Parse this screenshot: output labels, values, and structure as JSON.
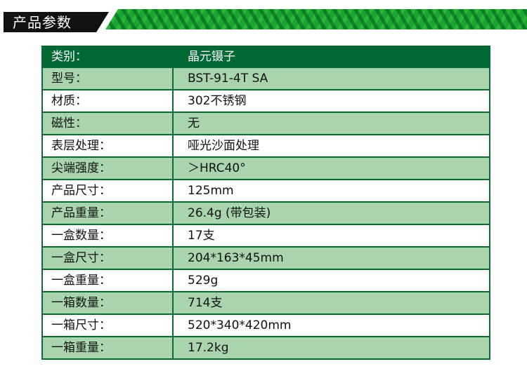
{
  "section_title": "产品参数",
  "colors": {
    "header": "#006934",
    "row_alt": "#a8d5ae",
    "border": "#0e6b35"
  },
  "table": {
    "header": {
      "label": "类别：",
      "value": "晶元镊子"
    },
    "rows": [
      {
        "label": "型号：",
        "value": "BST-91-4T SA"
      },
      {
        "label": "材质：",
        "value": "302不锈钢"
      },
      {
        "label": "磁性：",
        "value": "无"
      },
      {
        "label": "表层处理：",
        "value": "哑光沙面处理"
      },
      {
        "label": "尖端强度：",
        "value": "＞HRC40°"
      },
      {
        "label": "产品尺寸：",
        "value": "125mm"
      },
      {
        "label": "产品重量：",
        "value": "26.4g (带包装)"
      },
      {
        "label": "一盒数量：",
        "value": "17支"
      },
      {
        "label": "一盒尺寸：",
        "value": "204*163*45mm"
      },
      {
        "label": "一盒重量：",
        "value": "529g"
      },
      {
        "label": "一箱数量：",
        "value": "714支"
      },
      {
        "label": "一箱尺寸：",
        "value": "520*340*420mm"
      },
      {
        "label": "一箱重量：",
        "value": "17.2kg"
      }
    ]
  }
}
